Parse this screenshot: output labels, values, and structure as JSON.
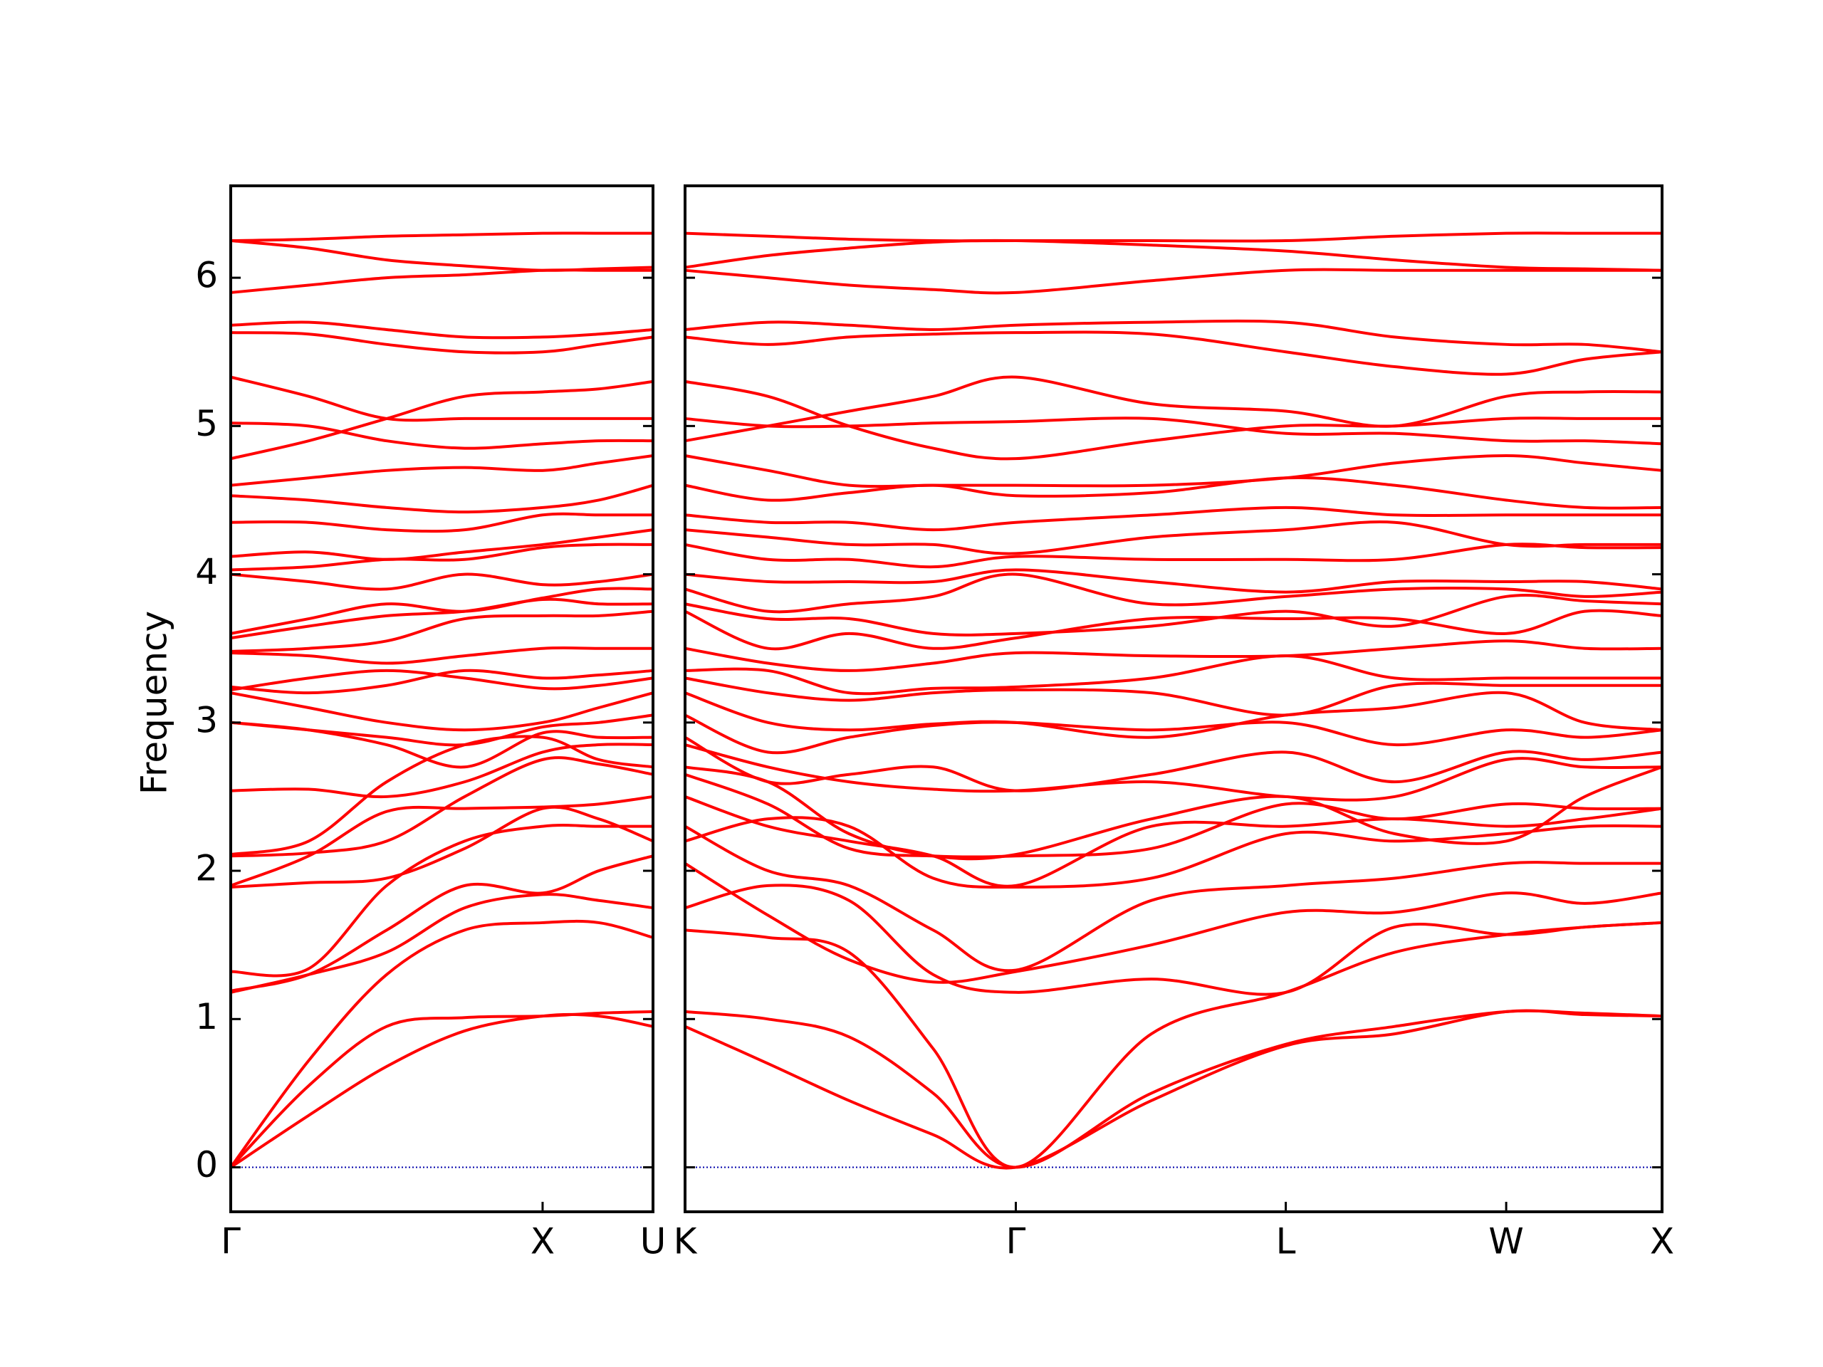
{
  "chart_data": [
    {
      "type": "line",
      "ylabel": "Frequency",
      "color": "#ff0000",
      "reference_line": {
        "y": 0,
        "color": "#0000aa"
      },
      "x": [
        0,
        0.25,
        0.5,
        0.75,
        1,
        1.18,
        1.354
      ],
      "xlim": [
        0,
        1.354
      ],
      "xticks": [
        {
          "value": 0,
          "label": "Γ"
        },
        {
          "value": 1,
          "label": "X"
        },
        {
          "value": 1.354,
          "label": "U"
        }
      ],
      "ylim": [
        -0.3,
        6.62
      ],
      "yticks": [
        0,
        1,
        2,
        3,
        4,
        5,
        6
      ],
      "series": [
        {
          "values": [
            0,
            0.35,
            0.68,
            0.92,
            1.02,
            1.02,
            0.95
          ]
        },
        {
          "values": [
            0,
            0.55,
            0.95,
            1.01,
            1.02,
            1.04,
            1.05
          ]
        },
        {
          "values": [
            0,
            0.72,
            1.3,
            1.6,
            1.65,
            1.65,
            1.55
          ]
        },
        {
          "values": [
            1.18,
            1.3,
            1.45,
            1.75,
            1.84,
            1.8,
            1.75
          ]
        },
        {
          "values": [
            1.19,
            1.3,
            1.6,
            1.9,
            1.85,
            2.0,
            2.1
          ]
        },
        {
          "values": [
            1.32,
            1.34,
            1.9,
            2.2,
            2.3,
            2.3,
            2.3
          ]
        },
        {
          "values": [
            1.89,
            1.92,
            1.95,
            2.15,
            2.42,
            2.35,
            2.2
          ]
        },
        {
          "values": [
            1.9,
            2.1,
            2.4,
            2.42,
            2.43,
            2.45,
            2.5
          ]
        },
        {
          "values": [
            2.1,
            2.12,
            2.2,
            2.5,
            2.75,
            2.72,
            2.65
          ]
        },
        {
          "values": [
            2.11,
            2.2,
            2.6,
            2.85,
            2.9,
            2.75,
            2.7
          ]
        },
        {
          "values": [
            2.54,
            2.55,
            2.5,
            2.6,
            2.8,
            2.85,
            2.85
          ]
        },
        {
          "values": [
            3.0,
            2.95,
            2.85,
            2.7,
            2.93,
            2.9,
            2.9
          ]
        },
        {
          "values": [
            3.0,
            2.95,
            2.9,
            2.85,
            2.97,
            3.0,
            3.05
          ]
        },
        {
          "values": [
            3.2,
            3.1,
            3.0,
            2.95,
            3.0,
            3.1,
            3.2
          ]
        },
        {
          "values": [
            3.22,
            3.3,
            3.35,
            3.3,
            3.23,
            3.25,
            3.3
          ]
        },
        {
          "values": [
            3.24,
            3.2,
            3.25,
            3.35,
            3.3,
            3.32,
            3.35
          ]
        },
        {
          "values": [
            3.47,
            3.45,
            3.4,
            3.45,
            3.5,
            3.5,
            3.5
          ]
        },
        {
          "values": [
            3.48,
            3.5,
            3.55,
            3.7,
            3.72,
            3.72,
            3.75
          ]
        },
        {
          "values": [
            3.57,
            3.65,
            3.72,
            3.75,
            3.83,
            3.8,
            3.8
          ]
        },
        {
          "values": [
            3.6,
            3.7,
            3.8,
            3.75,
            3.84,
            3.9,
            3.9
          ]
        },
        {
          "values": [
            4.0,
            3.95,
            3.9,
            4.0,
            3.93,
            3.95,
            4.0
          ]
        },
        {
          "values": [
            4.03,
            4.05,
            4.1,
            4.1,
            4.18,
            4.2,
            4.2
          ]
        },
        {
          "values": [
            4.12,
            4.15,
            4.1,
            4.15,
            4.2,
            4.25,
            4.3
          ]
        },
        {
          "values": [
            4.35,
            4.35,
            4.3,
            4.3,
            4.4,
            4.4,
            4.4
          ]
        },
        {
          "values": [
            4.53,
            4.5,
            4.45,
            4.42,
            4.45,
            4.5,
            4.6
          ]
        },
        {
          "values": [
            4.6,
            4.65,
            4.7,
            4.72,
            4.7,
            4.75,
            4.8
          ]
        },
        {
          "values": [
            4.78,
            4.9,
            5.05,
            5.2,
            5.23,
            5.25,
            5.3
          ]
        },
        {
          "values": [
            5.02,
            5.0,
            4.9,
            4.85,
            4.88,
            4.9,
            4.9
          ]
        },
        {
          "values": [
            5.33,
            5.2,
            5.05,
            5.05,
            5.05,
            5.05,
            5.05
          ]
        },
        {
          "values": [
            5.63,
            5.62,
            5.55,
            5.5,
            5.5,
            5.55,
            5.6
          ]
        },
        {
          "values": [
            5.68,
            5.7,
            5.65,
            5.6,
            5.6,
            5.62,
            5.65
          ]
        },
        {
          "values": [
            5.9,
            5.95,
            6.0,
            6.02,
            6.05,
            6.05,
            6.05
          ]
        },
        {
          "values": [
            6.25,
            6.26,
            6.28,
            6.29,
            6.3,
            6.3,
            6.3
          ]
        },
        {
          "values": [
            6.25,
            6.2,
            6.12,
            6.08,
            6.05,
            6.06,
            6.07
          ]
        }
      ]
    },
    {
      "type": "line",
      "color": "#ff0000",
      "reference_line": {
        "y": 0,
        "color": "#0000aa"
      },
      "x": [
        1.354,
        1.62,
        1.88,
        2.15,
        2.415,
        2.85,
        3.281,
        3.63,
        3.988,
        4.24,
        4.488
      ],
      "xlim": [
        1.354,
        4.488
      ],
      "xticks": [
        {
          "value": 1.354,
          "label": "K"
        },
        {
          "value": 2.415,
          "label": "Γ"
        },
        {
          "value": 3.281,
          "label": "L"
        },
        {
          "value": 3.988,
          "label": "W"
        },
        {
          "value": 4.488,
          "label": "X"
        }
      ],
      "ylim": [
        -0.3,
        6.62
      ],
      "series": [
        {
          "values": [
            0.95,
            0.7,
            0.45,
            0.22,
            0,
            0.45,
            0.82,
            0.9,
            1.05,
            1.03,
            1.02
          ]
        },
        {
          "values": [
            1.05,
            1.0,
            0.88,
            0.5,
            0,
            0.5,
            0.83,
            0.95,
            1.05,
            1.04,
            1.02
          ]
        },
        {
          "values": [
            1.6,
            1.55,
            1.45,
            0.8,
            0,
            0.9,
            1.18,
            1.45,
            1.57,
            1.62,
            1.65
          ]
        },
        {
          "values": [
            1.75,
            1.9,
            1.8,
            1.3,
            1.18,
            1.27,
            1.18,
            1.62,
            1.57,
            1.62,
            1.65
          ]
        },
        {
          "values": [
            2.05,
            1.7,
            1.4,
            1.25,
            1.32,
            1.5,
            1.72,
            1.72,
            1.85,
            1.78,
            1.85
          ]
        },
        {
          "values": [
            2.3,
            2.0,
            1.9,
            1.6,
            1.33,
            1.8,
            1.9,
            1.95,
            2.05,
            2.05,
            2.05
          ]
        },
        {
          "values": [
            2.2,
            2.35,
            2.3,
            1.95,
            1.89,
            1.95,
            2.25,
            2.2,
            2.25,
            2.3,
            2.3
          ]
        },
        {
          "values": [
            2.5,
            2.3,
            2.2,
            2.1,
            1.9,
            2.3,
            2.3,
            2.35,
            2.3,
            2.35,
            2.42
          ]
        },
        {
          "values": [
            2.65,
            2.45,
            2.15,
            2.1,
            2.1,
            2.15,
            2.45,
            2.35,
            2.45,
            2.42,
            2.42
          ]
        },
        {
          "values": [
            2.7,
            2.6,
            2.25,
            2.1,
            2.11,
            2.35,
            2.5,
            2.25,
            2.2,
            2.5,
            2.7
          ]
        },
        {
          "values": [
            2.85,
            2.7,
            2.6,
            2.55,
            2.54,
            2.6,
            2.5,
            2.5,
            2.75,
            2.7,
            2.7
          ]
        },
        {
          "values": [
            2.9,
            2.6,
            2.65,
            2.7,
            2.54,
            2.65,
            2.8,
            2.6,
            2.8,
            2.75,
            2.8
          ]
        },
        {
          "values": [
            3.05,
            2.8,
            2.9,
            2.98,
            3.0,
            2.95,
            3.0,
            2.85,
            2.95,
            2.9,
            2.95
          ]
        },
        {
          "values": [
            3.2,
            3.0,
            2.95,
            2.99,
            3.0,
            2.9,
            3.05,
            3.1,
            3.2,
            3.0,
            2.95
          ]
        },
        {
          "values": [
            3.3,
            3.2,
            3.15,
            3.2,
            3.22,
            3.2,
            3.05,
            3.25,
            3.25,
            3.25,
            3.25
          ]
        },
        {
          "values": [
            3.35,
            3.35,
            3.2,
            3.23,
            3.24,
            3.3,
            3.45,
            3.3,
            3.3,
            3.3,
            3.3
          ]
        },
        {
          "values": [
            3.5,
            3.4,
            3.35,
            3.4,
            3.47,
            3.45,
            3.45,
            3.5,
            3.55,
            3.5,
            3.5
          ]
        },
        {
          "values": [
            3.75,
            3.5,
            3.6,
            3.5,
            3.57,
            3.7,
            3.7,
            3.7,
            3.6,
            3.75,
            3.72
          ]
        },
        {
          "values": [
            3.8,
            3.7,
            3.7,
            3.6,
            3.6,
            3.65,
            3.75,
            3.65,
            3.85,
            3.82,
            3.8
          ]
        },
        {
          "values": [
            3.9,
            3.75,
            3.8,
            3.85,
            4.0,
            3.8,
            3.85,
            3.9,
            3.9,
            3.85,
            3.88
          ]
        },
        {
          "values": [
            4.0,
            3.95,
            3.95,
            3.95,
            4.03,
            3.95,
            3.88,
            3.95,
            3.95,
            3.95,
            3.9
          ]
        },
        {
          "values": [
            4.2,
            4.1,
            4.1,
            4.05,
            4.12,
            4.1,
            4.1,
            4.1,
            4.2,
            4.18,
            4.18
          ]
        },
        {
          "values": [
            4.3,
            4.25,
            4.2,
            4.2,
            4.14,
            4.25,
            4.3,
            4.35,
            4.2,
            4.2,
            4.2
          ]
        },
        {
          "values": [
            4.4,
            4.35,
            4.35,
            4.3,
            4.35,
            4.4,
            4.45,
            4.4,
            4.4,
            4.4,
            4.4
          ]
        },
        {
          "values": [
            4.6,
            4.5,
            4.55,
            4.6,
            4.53,
            4.55,
            4.65,
            4.6,
            4.5,
            4.45,
            4.45
          ]
        },
        {
          "values": [
            4.8,
            4.7,
            4.6,
            4.6,
            4.6,
            4.6,
            4.65,
            4.75,
            4.8,
            4.75,
            4.7
          ]
        },
        {
          "values": [
            5.3,
            5.2,
            5.0,
            4.85,
            4.78,
            4.9,
            5.0,
            5.0,
            5.05,
            5.05,
            5.05
          ]
        },
        {
          "values": [
            4.9,
            5.0,
            5.1,
            5.2,
            5.33,
            5.15,
            5.1,
            5.0,
            5.2,
            5.23,
            5.23
          ]
        },
        {
          "values": [
            5.05,
            5.0,
            5.0,
            5.02,
            5.03,
            5.05,
            4.95,
            4.95,
            4.9,
            4.9,
            4.88
          ]
        },
        {
          "values": [
            5.6,
            5.55,
            5.6,
            5.62,
            5.63,
            5.62,
            5.5,
            5.4,
            5.35,
            5.45,
            5.5
          ]
        },
        {
          "values": [
            5.65,
            5.7,
            5.68,
            5.65,
            5.68,
            5.7,
            5.7,
            5.6,
            5.55,
            5.55,
            5.5
          ]
        },
        {
          "values": [
            6.05,
            6.0,
            5.95,
            5.92,
            5.9,
            5.98,
            6.05,
            6.05,
            6.05,
            6.05,
            6.05
          ]
        },
        {
          "values": [
            6.3,
            6.28,
            6.26,
            6.25,
            6.25,
            6.25,
            6.25,
            6.28,
            6.3,
            6.3,
            6.3
          ]
        },
        {
          "values": [
            6.07,
            6.15,
            6.2,
            6.24,
            6.25,
            6.22,
            6.18,
            6.12,
            6.07,
            6.06,
            6.05
          ]
        }
      ]
    }
  ]
}
